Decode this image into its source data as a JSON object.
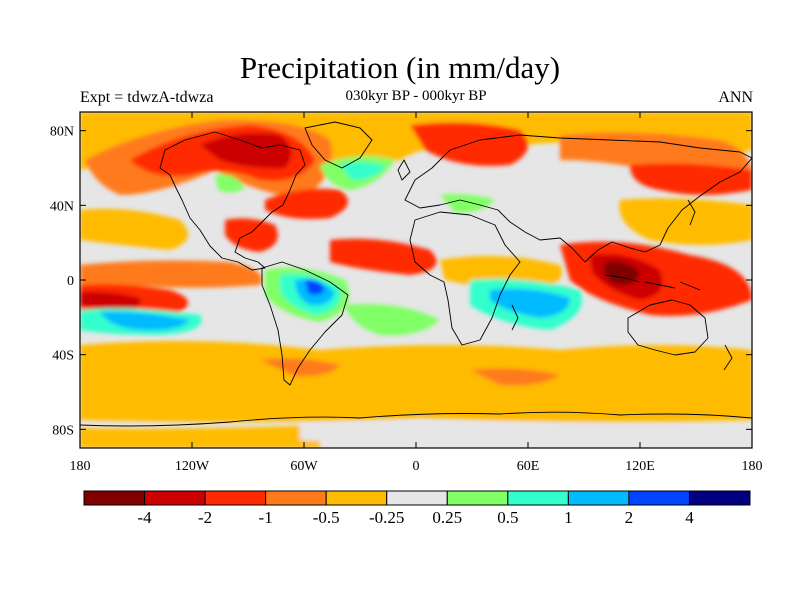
{
  "title": "Precipitation (in mm/day)",
  "subtitle_left": "Expt = tdwzA-tdwza",
  "subtitle_center": "030kyr BP - 000kyr BP",
  "subtitle_right": "ANN",
  "map": {
    "lon_range": [
      -180,
      180
    ],
    "lat_range": [
      -90,
      90
    ],
    "background_value_color": "#e6e6e6",
    "lat_ticks": [
      {
        "value": 80,
        "label": "80N"
      },
      {
        "value": 40,
        "label": "40N"
      },
      {
        "value": 0,
        "label": "0"
      },
      {
        "value": -40,
        "label": "40S"
      },
      {
        "value": -80,
        "label": "80S"
      }
    ],
    "lon_ticks": [
      {
        "value": -180,
        "label": "180"
      },
      {
        "value": -120,
        "label": "120W"
      },
      {
        "value": -60,
        "label": "60W"
      },
      {
        "value": 0,
        "label": "0"
      },
      {
        "value": 60,
        "label": "60E"
      },
      {
        "value": 120,
        "label": "120E"
      },
      {
        "value": 180,
        "label": "180"
      }
    ]
  },
  "colorbar": {
    "colors": [
      "#800000",
      "#cc0000",
      "#ff2a00",
      "#ff7a1a",
      "#ffbb00",
      "#e6e6e6",
      "#80ff66",
      "#33ffcc",
      "#00bbff",
      "#0044ff",
      "#000080"
    ],
    "labels": [
      "-4",
      "-2",
      "-1",
      "-0.5",
      "-0.25",
      "0.25",
      "0.5",
      "1",
      "2",
      "4"
    ]
  }
}
